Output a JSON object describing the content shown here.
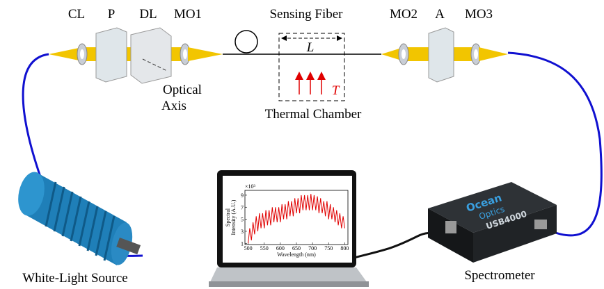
{
  "labels": {
    "cl": "CL",
    "p": "P",
    "dl": "DL",
    "mo1": "MO1",
    "sensing_fiber": "Sensing Fiber",
    "length": "L",
    "temperature": "T",
    "mo2": "MO2",
    "analyzer": "A",
    "mo3": "MO3",
    "optical_axis": [
      "Optical",
      "Axis"
    ],
    "thermal_chamber": "Thermal Chamber",
    "white_light_source": "White-Light Source",
    "spectrometer": "Spectrometer"
  },
  "spectrometer_device": {
    "brand": [
      "Ocean",
      "Optics"
    ],
    "model": "USB4000"
  },
  "screen_chart": {
    "type": "line",
    "y_label": [
      "Spectral",
      "Intensity (A.U.)"
    ],
    "x_label": "Wavelength (nm)",
    "multiplier": "×10³",
    "color": "#e00000",
    "x": [
      500,
      505,
      510,
      515,
      520,
      525,
      530,
      535,
      540,
      545,
      550,
      555,
      560,
      565,
      570,
      575,
      580,
      585,
      590,
      595,
      600,
      605,
      610,
      615,
      620,
      625,
      630,
      635,
      640,
      645,
      650,
      655,
      660,
      665,
      670,
      675,
      680,
      685,
      690,
      695,
      700,
      705,
      710,
      715,
      720,
      725,
      730,
      735,
      740,
      745,
      750,
      755,
      760,
      765,
      770,
      775,
      780,
      785,
      790,
      795,
      800
    ],
    "values": [
      1.0,
      3.5,
      1.5,
      4.5,
      2.5,
      5.5,
      3.0,
      6.0,
      3.5,
      6.0,
      3.5,
      6.5,
      4.0,
      6.5,
      4.0,
      7.0,
      4.5,
      7.0,
      4.5,
      7.0,
      4.5,
      7.5,
      5.0,
      7.5,
      5.0,
      8.0,
      5.5,
      8.0,
      5.5,
      8.5,
      6.0,
      8.5,
      6.0,
      9.0,
      6.5,
      9.0,
      6.5,
      9.0,
      6.5,
      9.2,
      6.5,
      9.0,
      6.5,
      8.8,
      6.0,
      8.5,
      6.0,
      8.0,
      5.5,
      8.0,
      5.0,
      7.5,
      5.0,
      7.0,
      4.5,
      6.5,
      4.0,
      6.0,
      3.5,
      5.5,
      3.5
    ],
    "xlim": [
      490,
      810
    ],
    "ylim": [
      0.8,
      9.8
    ],
    "xticks": [
      500,
      550,
      600,
      650,
      700,
      750,
      800
    ],
    "yticks": [
      1,
      3,
      5,
      7,
      9
    ]
  }
}
